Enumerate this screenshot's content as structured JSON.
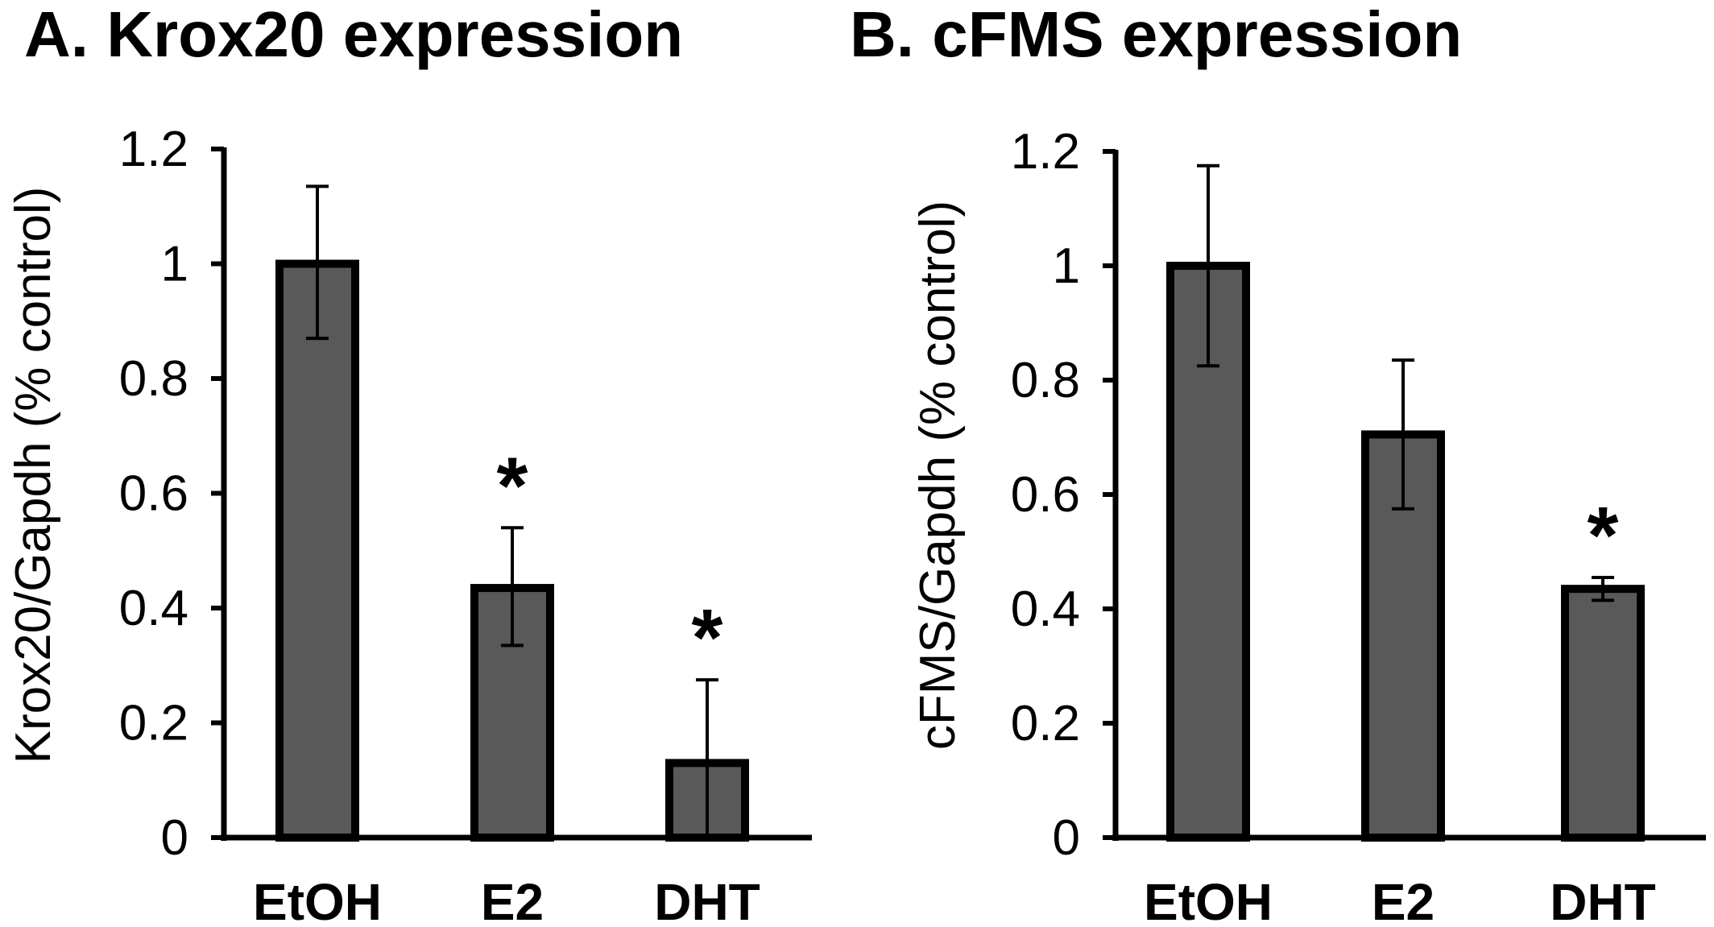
{
  "colors": {
    "bar_fill": "#595959",
    "bar_stroke": "#000000",
    "axis": "#000000"
  },
  "chart_data": [
    {
      "type": "bar",
      "title": "A. Krox20 expression",
      "xlabel": "",
      "ylabel": "Krox20/Gapdh (% control)",
      "categories": [
        "EtOH",
        "E2",
        "DHT"
      ],
      "values": [
        1.0,
        0.435,
        0.13
      ],
      "error_upper": [
        1.135,
        0.54,
        0.275
      ],
      "error_lower": [
        0.87,
        0.335,
        0.0
      ],
      "significance": [
        "",
        "*",
        "*"
      ],
      "ylim": [
        0,
        1.2
      ],
      "yticks": [
        "0",
        "0.2",
        "0.4",
        "0.6",
        "0.8",
        "1",
        "1.2"
      ],
      "grid": false
    },
    {
      "type": "bar",
      "title": "B. cFMS expression",
      "xlabel": "",
      "ylabel": "cFMS/Gapdh (% control)",
      "categories": [
        "EtOH",
        "E2",
        "DHT"
      ],
      "values": [
        1.0,
        0.705,
        0.435
      ],
      "error_upper": [
        1.175,
        0.835,
        0.455
      ],
      "error_lower": [
        0.825,
        0.575,
        0.415
      ],
      "significance": [
        "",
        "",
        "*"
      ],
      "ylim": [
        0,
        1.2
      ],
      "yticks": [
        "0",
        "0.2",
        "0.4",
        "0.6",
        "0.8",
        "1",
        "1.2"
      ],
      "grid": false
    }
  ]
}
